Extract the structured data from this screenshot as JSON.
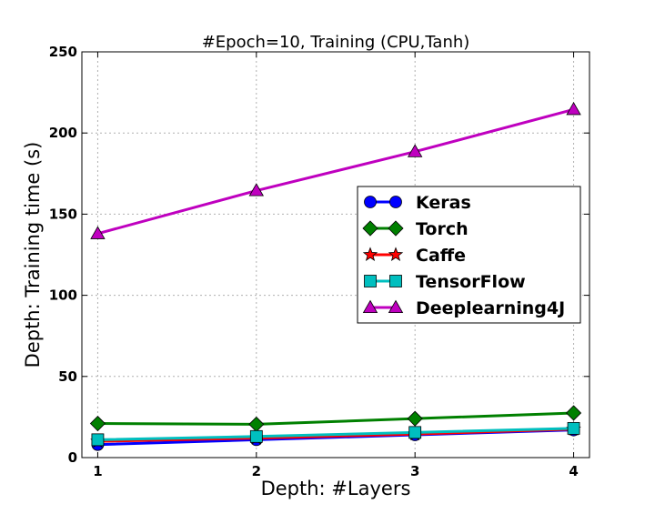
{
  "chart_data": {
    "type": "line",
    "title": "#Epoch=10, Training (CPU,Tanh)",
    "xlabel": "Depth: #Layers",
    "ylabel": "Depth: Training time (s)",
    "x": [
      1,
      2,
      3,
      4
    ],
    "xticks": [
      "1",
      "2",
      "3",
      "4"
    ],
    "xlim": [
      0.9,
      4.1
    ],
    "ylim": [
      0,
      250
    ],
    "yticks": [
      "0",
      "50",
      "100",
      "150",
      "200",
      "250"
    ],
    "grid": true,
    "legend_position": "center-right",
    "series": [
      {
        "name": "Keras",
        "values": [
          8,
          11,
          14,
          17
        ],
        "color": "#0000ff",
        "marker": "circle"
      },
      {
        "name": "Torch",
        "values": [
          21,
          20.5,
          24,
          27.5
        ],
        "color": "#008000",
        "marker": "diamond"
      },
      {
        "name": "Caffe",
        "values": [
          10,
          12,
          14.5,
          17.5
        ],
        "color": "#ff0000",
        "marker": "star"
      },
      {
        "name": "TensorFlow",
        "values": [
          11,
          13,
          15.5,
          18
        ],
        "color": "#00bfbf",
        "marker": "square"
      },
      {
        "name": "Deeplearning4J",
        "values": [
          138,
          164.5,
          188.5,
          214.5
        ],
        "color": "#bf00bf",
        "marker": "triangle"
      }
    ]
  }
}
